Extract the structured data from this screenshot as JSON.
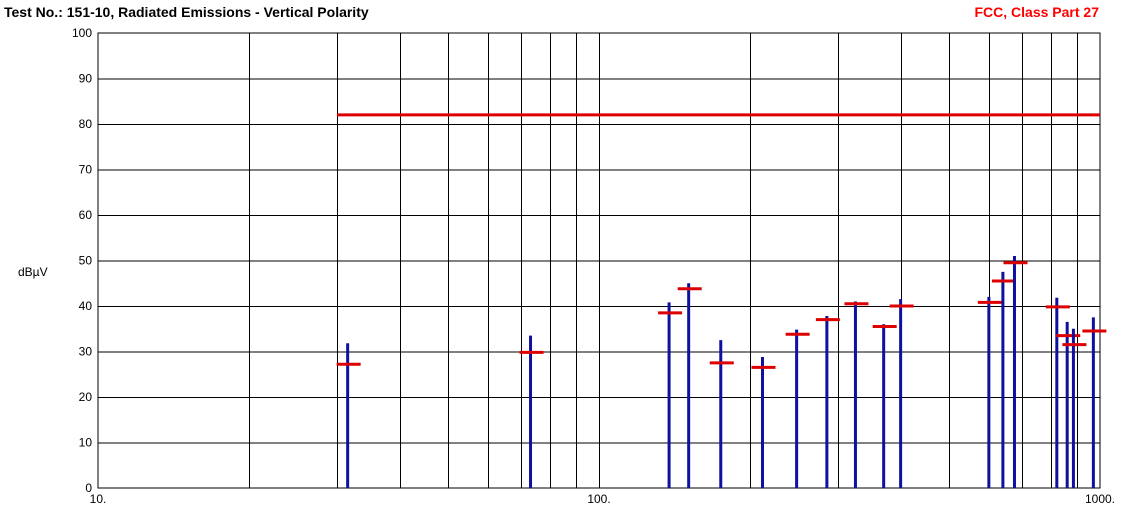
{
  "chart_data": {
    "type": "bar",
    "title": "Test No.: 151-10, Radiated Emissions - Vertical Polarity",
    "subtitle": "FCC, Class Part 27",
    "ylabel": "dBµV",
    "xlabel": "",
    "x_scale": "log",
    "xlim": [
      10,
      1000
    ],
    "ylim": [
      0,
      100
    ],
    "x_tick_labels": [
      "10.",
      "100.",
      "1000."
    ],
    "y_tick_labels": [
      "0",
      "10",
      "20",
      "30",
      "40",
      "50",
      "60",
      "70",
      "80",
      "90",
      "100"
    ],
    "grid": true,
    "limit_line": {
      "x_start": 30,
      "x_end": 1000,
      "y": 82,
      "color": "#dd0000"
    },
    "series": [
      {
        "values_key": "peak",
        "color": "#1010a0"
      },
      {
        "values_key": "level",
        "color": "#dd0000"
      }
    ],
    "points": [
      {
        "x": 31.5,
        "peak": 31.8,
        "level": 27.2
      },
      {
        "x": 73,
        "peak": 33.5,
        "level": 29.8
      },
      {
        "x": 138,
        "peak": 40.8,
        "level": 38.5
      },
      {
        "x": 151,
        "peak": 45.0,
        "level": 43.8
      },
      {
        "x": 175,
        "peak": 32.5,
        "level": 27.5
      },
      {
        "x": 212,
        "peak": 28.8,
        "level": 26.5
      },
      {
        "x": 248,
        "peak": 34.8,
        "level": 33.8
      },
      {
        "x": 285,
        "peak": 37.8,
        "level": 37.0
      },
      {
        "x": 325,
        "peak": 41.0,
        "level": 40.5
      },
      {
        "x": 370,
        "peak": 36.0,
        "level": 35.5
      },
      {
        "x": 400,
        "peak": 41.5,
        "level": 40.0
      },
      {
        "x": 600,
        "peak": 42.0,
        "level": 40.8
      },
      {
        "x": 640,
        "peak": 47.5,
        "level": 45.5
      },
      {
        "x": 675,
        "peak": 51.0,
        "level": 49.5
      },
      {
        "x": 820,
        "peak": 41.8,
        "level": 39.8
      },
      {
        "x": 860,
        "peak": 36.5,
        "level": 33.5
      },
      {
        "x": 885,
        "peak": 35.0,
        "level": 31.5
      },
      {
        "x": 970,
        "peak": 37.5,
        "level": 34.5
      }
    ]
  }
}
